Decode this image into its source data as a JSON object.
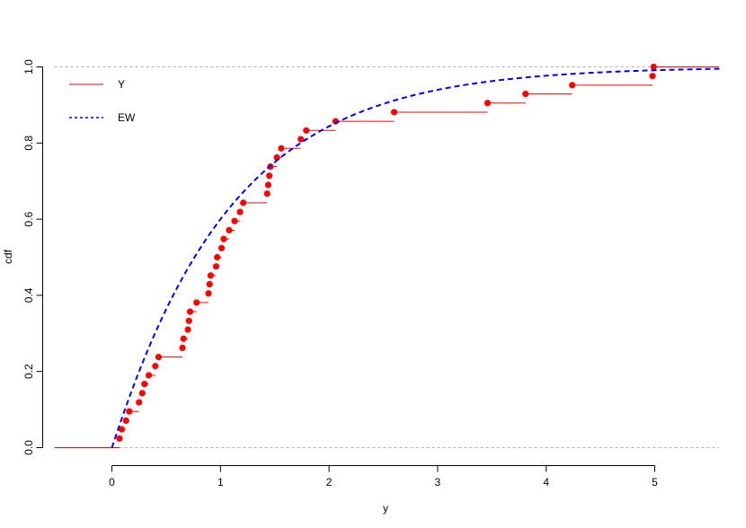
{
  "chart_data": {
    "type": "line",
    "xlabel": "y",
    "ylabel": "cdf",
    "xlim": [
      -0.55,
      5.6
    ],
    "ylim": [
      0,
      1
    ],
    "x_ticks": [
      0,
      1,
      2,
      3,
      4,
      5
    ],
    "y_ticks": [
      0.0,
      0.2,
      0.4,
      0.6,
      0.8,
      1.0
    ],
    "x_tick_labels": [
      "0",
      "1",
      "2",
      "3",
      "4",
      "5"
    ],
    "y_tick_labels": [
      "0.0",
      "0.2",
      "0.4",
      "0.6",
      "0.8",
      "1.0"
    ],
    "reference_lines_y": [
      0,
      1
    ],
    "legend_position": "top-left",
    "series": [
      {
        "name": "Y",
        "kind": "empirical-cdf-step",
        "color": "#ff0000",
        "points": [
          [
            0.07,
            0.024
          ],
          [
            0.09,
            0.048
          ],
          [
            0.13,
            0.071
          ],
          [
            0.16,
            0.095
          ],
          [
            0.25,
            0.119
          ],
          [
            0.28,
            0.143
          ],
          [
            0.3,
            0.167
          ],
          [
            0.34,
            0.19
          ],
          [
            0.4,
            0.214
          ],
          [
            0.43,
            0.238
          ],
          [
            0.65,
            0.262
          ],
          [
            0.66,
            0.286
          ],
          [
            0.7,
            0.31
          ],
          [
            0.71,
            0.333
          ],
          [
            0.72,
            0.357
          ],
          [
            0.78,
            0.381
          ],
          [
            0.89,
            0.405
          ],
          [
            0.9,
            0.429
          ],
          [
            0.91,
            0.452
          ],
          [
            0.96,
            0.476
          ],
          [
            0.97,
            0.5
          ],
          [
            1.01,
            0.524
          ],
          [
            1.03,
            0.548
          ],
          [
            1.08,
            0.571
          ],
          [
            1.13,
            0.595
          ],
          [
            1.18,
            0.619
          ],
          [
            1.21,
            0.643
          ],
          [
            1.43,
            0.667
          ],
          [
            1.44,
            0.69
          ],
          [
            1.45,
            0.714
          ],
          [
            1.46,
            0.738
          ],
          [
            1.52,
            0.762
          ],
          [
            1.56,
            0.786
          ],
          [
            1.74,
            0.81
          ],
          [
            1.79,
            0.833
          ],
          [
            2.06,
            0.857
          ],
          [
            2.6,
            0.881
          ],
          [
            3.46,
            0.905
          ],
          [
            3.81,
            0.929
          ],
          [
            4.24,
            0.952
          ],
          [
            4.98,
            0.976
          ],
          [
            4.99,
            1.0
          ]
        ]
      },
      {
        "name": "EW",
        "kind": "theoretical-cdf",
        "color": "#0000ff",
        "linestyle": "dashed",
        "x_start": 0
      }
    ]
  }
}
